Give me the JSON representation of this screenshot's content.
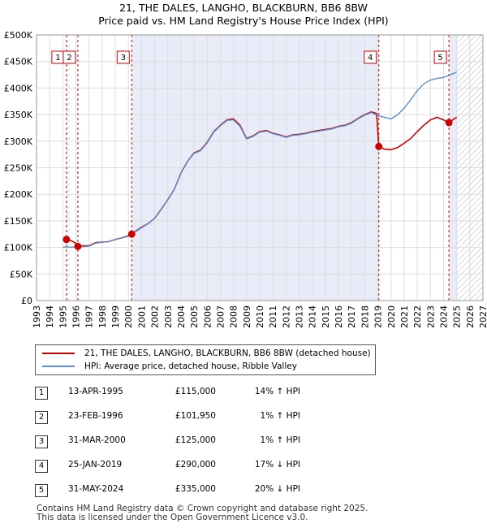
{
  "title_line1": "21, THE DALES, LANGHO, BLACKBURN, BB6 8BW",
  "title_line2": "Price paid vs. HM Land Registry's House Price Index (HPI)",
  "legend": {
    "property": "21, THE DALES, LANGHO, BLACKBURN, BB6 8BW (detached house)",
    "hpi": "HPI: Average price, detached house, Ribble Valley"
  },
  "transactions": [
    {
      "num": "1",
      "date": "13-APR-1995",
      "price": "£115,000",
      "hpi": "14% ↑ HPI"
    },
    {
      "num": "2",
      "date": "23-FEB-1996",
      "price": "£101,950",
      "hpi": "1% ↑ HPI"
    },
    {
      "num": "3",
      "date": "31-MAR-2000",
      "price": "£125,000",
      "hpi": "1% ↑ HPI"
    },
    {
      "num": "4",
      "date": "25-JAN-2019",
      "price": "£290,000",
      "hpi": "17% ↓ HPI"
    },
    {
      "num": "5",
      "date": "31-MAY-2024",
      "price": "£335,000",
      "hpi": "20% ↓ HPI"
    }
  ],
  "footer_line1": "Contains HM Land Registry data © Crown copyright and database right 2025.",
  "footer_line2": "This data is licensed under the Open Government Licence v3.0.",
  "colors": {
    "property_line": "#cc0000",
    "hpi_line": "#5b8fd1",
    "owned_shade": "#e8ecf8",
    "future_hatch": "#bbbbbb",
    "grid": "#dddddd",
    "marker_box_border": "#cc0000"
  },
  "chart_data": {
    "type": "line",
    "title": "21, THE DALES, LANGHO, BLACKBURN, BB6 8BW",
    "subtitle": "Price paid vs. HM Land Registry's House Price Index (HPI)",
    "x_ticks": [
      "1993",
      "1994",
      "1995",
      "1996",
      "1997",
      "1998",
      "1999",
      "2000",
      "2001",
      "2002",
      "2003",
      "2004",
      "2005",
      "2006",
      "2007",
      "2008",
      "2009",
      "2010",
      "2011",
      "2012",
      "2013",
      "2014",
      "2015",
      "2016",
      "2017",
      "2018",
      "2019",
      "2020",
      "2021",
      "2022",
      "2023",
      "2024",
      "2025",
      "2026",
      "2027"
    ],
    "y_ticks": [
      "£0",
      "£50K",
      "£100K",
      "£150K",
      "£200K",
      "£250K",
      "£300K",
      "£350K",
      "£400K",
      "£450K",
      "£500K"
    ],
    "xlim": [
      1993,
      2027
    ],
    "ylim": [
      0,
      500000
    ],
    "grid": true,
    "legend_position": "below-left",
    "future_from": 2025.0,
    "sales": [
      {
        "label": "1",
        "x": 1995.28,
        "y": 115000
      },
      {
        "label": "2",
        "x": 1996.15,
        "y": 101950
      },
      {
        "label": "3",
        "x": 2000.25,
        "y": 125000
      },
      {
        "label": "4",
        "x": 2019.07,
        "y": 290000
      },
      {
        "label": "5",
        "x": 2024.41,
        "y": 335000
      }
    ],
    "series": [
      {
        "name": "21, THE DALES, LANGHO, BLACKBURN, BB6 8BW (detached house)",
        "color": "#cc0000",
        "points": [
          [
            1995.28,
            115000
          ],
          [
            1995.6,
            113000
          ],
          [
            1996.0,
            108000
          ],
          [
            1996.15,
            101950
          ],
          [
            1996.6,
            103000
          ],
          [
            1997.0,
            103000
          ],
          [
            1997.5,
            109000
          ],
          [
            1998.0,
            110000
          ],
          [
            1998.5,
            111000
          ],
          [
            1999.0,
            115000
          ],
          [
            1999.5,
            118000
          ],
          [
            2000.0,
            122000
          ],
          [
            2000.25,
            125000
          ],
          [
            2000.5,
            130000
          ],
          [
            2001.0,
            138000
          ],
          [
            2001.5,
            145000
          ],
          [
            2002.0,
            155000
          ],
          [
            2002.5,
            172000
          ],
          [
            2003.0,
            190000
          ],
          [
            2003.5,
            210000
          ],
          [
            2004.0,
            240000
          ],
          [
            2004.5,
            262000
          ],
          [
            2005.0,
            278000
          ],
          [
            2005.5,
            283000
          ],
          [
            2006.0,
            298000
          ],
          [
            2006.5,
            318000
          ],
          [
            2007.0,
            330000
          ],
          [
            2007.5,
            340000
          ],
          [
            2008.0,
            342000
          ],
          [
            2008.5,
            330000
          ],
          [
            2009.0,
            305000
          ],
          [
            2009.5,
            310000
          ],
          [
            2010.0,
            318000
          ],
          [
            2010.5,
            320000
          ],
          [
            2011.0,
            315000
          ],
          [
            2011.5,
            312000
          ],
          [
            2012.0,
            308000
          ],
          [
            2012.5,
            312000
          ],
          [
            2013.0,
            313000
          ],
          [
            2013.5,
            315000
          ],
          [
            2014.0,
            318000
          ],
          [
            2014.5,
            320000
          ],
          [
            2015.0,
            322000
          ],
          [
            2015.5,
            324000
          ],
          [
            2016.0,
            328000
          ],
          [
            2016.5,
            330000
          ],
          [
            2017.0,
            335000
          ],
          [
            2017.5,
            343000
          ],
          [
            2018.0,
            350000
          ],
          [
            2018.5,
            355000
          ],
          [
            2018.9,
            352000
          ],
          [
            2019.07,
            290000
          ],
          [
            2019.5,
            285000
          ],
          [
            2020.0,
            284000
          ],
          [
            2020.5,
            288000
          ],
          [
            2021.0,
            296000
          ],
          [
            2021.5,
            305000
          ],
          [
            2022.0,
            318000
          ],
          [
            2022.5,
            330000
          ],
          [
            2023.0,
            340000
          ],
          [
            2023.5,
            345000
          ],
          [
            2024.0,
            340000
          ],
          [
            2024.41,
            335000
          ],
          [
            2024.7,
            340000
          ],
          [
            2025.0,
            345000
          ]
        ]
      },
      {
        "name": "HPI: Average price, detached house, Ribble Valley",
        "color": "#5b8fd1",
        "points": [
          [
            1995.0,
            100000
          ],
          [
            1995.28,
            101000
          ],
          [
            1995.6,
            100500
          ],
          [
            1996.15,
            101000
          ],
          [
            1996.6,
            101500
          ],
          [
            1997.0,
            102500
          ],
          [
            1997.5,
            108000
          ],
          [
            1998.0,
            110000
          ],
          [
            1998.5,
            111000
          ],
          [
            1999.0,
            115000
          ],
          [
            1999.5,
            118000
          ],
          [
            2000.0,
            121000
          ],
          [
            2000.25,
            124000
          ],
          [
            2000.5,
            129000
          ],
          [
            2001.0,
            137000
          ],
          [
            2001.5,
            145000
          ],
          [
            2002.0,
            155000
          ],
          [
            2002.5,
            172000
          ],
          [
            2003.0,
            190000
          ],
          [
            2003.5,
            210000
          ],
          [
            2004.0,
            240000
          ],
          [
            2004.5,
            262000
          ],
          [
            2005.0,
            277000
          ],
          [
            2005.5,
            282000
          ],
          [
            2006.0,
            297000
          ],
          [
            2006.5,
            317000
          ],
          [
            2007.0,
            329000
          ],
          [
            2007.5,
            339000
          ],
          [
            2008.0,
            340000
          ],
          [
            2008.5,
            328000
          ],
          [
            2009.0,
            304000
          ],
          [
            2009.5,
            309000
          ],
          [
            2010.0,
            317000
          ],
          [
            2010.5,
            319000
          ],
          [
            2011.0,
            314000
          ],
          [
            2011.5,
            311000
          ],
          [
            2012.0,
            307000
          ],
          [
            2012.5,
            311000
          ],
          [
            2013.0,
            312000
          ],
          [
            2013.5,
            314000
          ],
          [
            2014.0,
            317000
          ],
          [
            2014.5,
            319000
          ],
          [
            2015.0,
            321000
          ],
          [
            2015.5,
            323000
          ],
          [
            2016.0,
            327000
          ],
          [
            2016.5,
            329000
          ],
          [
            2017.0,
            334000
          ],
          [
            2017.5,
            342000
          ],
          [
            2018.0,
            349000
          ],
          [
            2018.5,
            354000
          ],
          [
            2019.0,
            348000
          ],
          [
            2019.5,
            345000
          ],
          [
            2020.0,
            342000
          ],
          [
            2020.5,
            350000
          ],
          [
            2021.0,
            362000
          ],
          [
            2021.5,
            378000
          ],
          [
            2022.0,
            395000
          ],
          [
            2022.5,
            408000
          ],
          [
            2023.0,
            415000
          ],
          [
            2023.5,
            418000
          ],
          [
            2024.0,
            420000
          ],
          [
            2024.5,
            425000
          ],
          [
            2025.0,
            430000
          ]
        ]
      }
    ]
  }
}
